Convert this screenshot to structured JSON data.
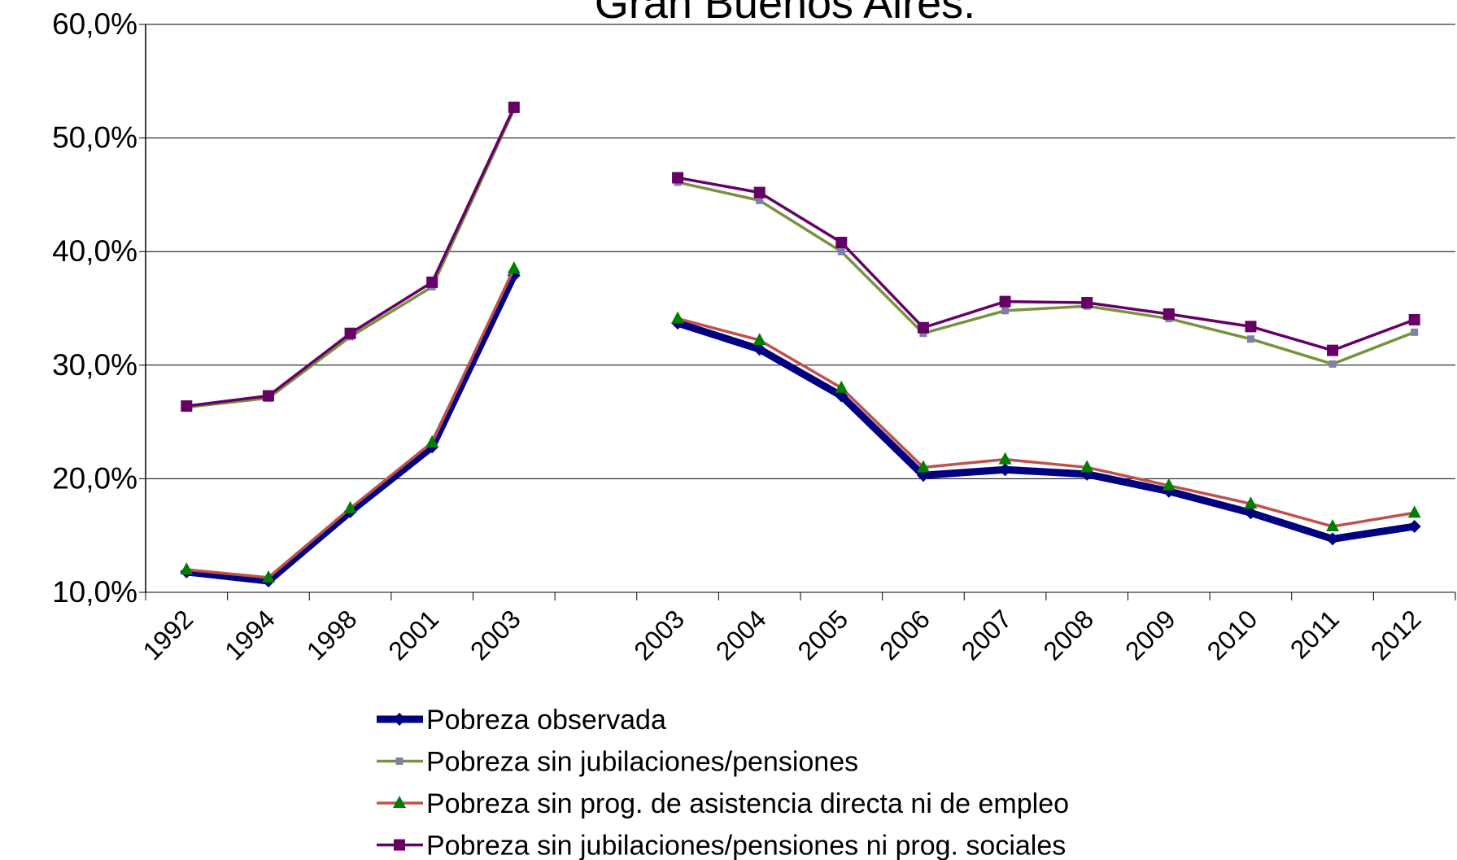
{
  "chart_data": {
    "type": "line",
    "title": "Gran Buenos Aires.",
    "categories": [
      "1992",
      "1994",
      "1998",
      "2001",
      "2003",
      null,
      "2003",
      "2004",
      "2005",
      "2006",
      "2007",
      "2008",
      "2009",
      "2010",
      "2011",
      "2012"
    ],
    "ylim": [
      10,
      60
    ],
    "yticks": [
      {
        "value": 10,
        "label": "10,0%"
      },
      {
        "value": 20,
        "label": "20,0%"
      },
      {
        "value": 30,
        "label": "30,0%"
      },
      {
        "value": 40,
        "label": "40,0%"
      },
      {
        "value": 50,
        "label": "50,0%"
      },
      {
        "value": 60,
        "label": "60,0%"
      }
    ],
    "grid": true,
    "legend": "bottom",
    "series": [
      {
        "name": "Pobreza observada",
        "color": "#000080",
        "marker_color": "#000080",
        "marker": "diamond",
        "values": [
          11.8,
          11.0,
          17.1,
          22.8,
          37.9,
          null,
          33.7,
          31.4,
          27.3,
          20.3,
          20.8,
          20.4,
          18.9,
          17.0,
          14.7,
          15.8
        ]
      },
      {
        "name": "Pobreza sin jubilaciones/pensiones",
        "color": "#77933c",
        "marker_color": "#7f7fa8",
        "marker": "small-square",
        "values": [
          26.3,
          27.1,
          32.5,
          36.9,
          52.5,
          null,
          46.1,
          44.5,
          40.0,
          32.8,
          34.8,
          35.2,
          34.1,
          32.3,
          30.1,
          32.9
        ]
      },
      {
        "name": "Pobreza sin prog. de asistencia directa ni de empleo",
        "color": "#c0504d",
        "marker_color": "#008000",
        "marker": "triangle",
        "values": [
          12.0,
          11.3,
          17.4,
          23.2,
          38.5,
          null,
          34.1,
          32.2,
          28.0,
          21.0,
          21.7,
          21.0,
          19.4,
          17.8,
          15.8,
          17.0
        ]
      },
      {
        "name": "Pobreza sin jubilaciones/pensiones ni prog. sociales",
        "color": "#660066",
        "marker_color": "#660066",
        "marker": "square",
        "values": [
          26.4,
          27.3,
          32.8,
          37.3,
          52.7,
          null,
          46.5,
          45.2,
          40.8,
          33.3,
          35.6,
          35.5,
          34.5,
          33.4,
          31.3,
          34.0
        ]
      }
    ]
  }
}
